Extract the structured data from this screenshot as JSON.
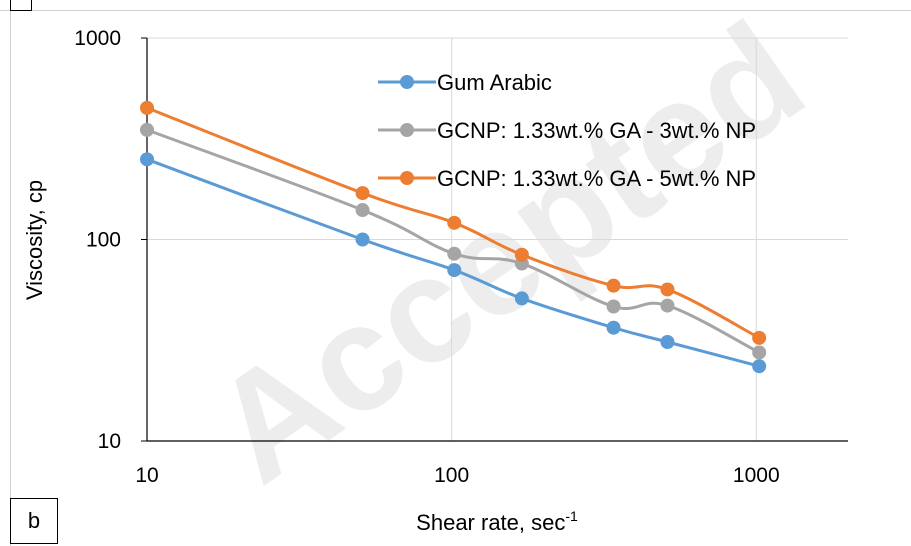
{
  "watermark": "Accepted",
  "panel_label": "b",
  "chart_data": {
    "type": "line",
    "x_scale": "log",
    "y_scale": "log",
    "xlim": [
      10,
      2000
    ],
    "ylim": [
      10,
      1000
    ],
    "x_ticks": [
      10,
      100,
      1000
    ],
    "y_ticks": [
      10,
      100,
      1000
    ],
    "x_tick_labels": [
      "10",
      "100",
      "1000"
    ],
    "y_tick_labels": [
      "10",
      "100",
      "1000"
    ],
    "xlabel": "Shear rate, sec",
    "xlabel_superscript": "-1",
    "ylabel": "Viscosity, cp",
    "grid": true,
    "legend_position": "top-center",
    "series": [
      {
        "name": "Gum Arabic",
        "color": "#5B9BD5",
        "x": [
          10,
          51,
          102,
          170,
          340,
          511,
          1022
        ],
        "y": [
          250,
          100,
          70.5,
          51,
          36.5,
          31,
          23.5
        ]
      },
      {
        "name": "GCNP: 1.33wt.% GA - 3wt.% NP",
        "color": "#A5A5A5",
        "x": [
          10,
          51,
          102,
          170,
          340,
          511,
          1022
        ],
        "y": [
          350,
          140,
          85,
          76,
          46.5,
          47,
          27.5
        ]
      },
      {
        "name": "GCNP: 1.33wt.% GA - 5wt.% NP",
        "color": "#ED7D31",
        "x": [
          10,
          51,
          102,
          170,
          340,
          511,
          1022
        ],
        "y": [
          450,
          170,
          121,
          84,
          59,
          56.5,
          32.5
        ]
      }
    ]
  }
}
